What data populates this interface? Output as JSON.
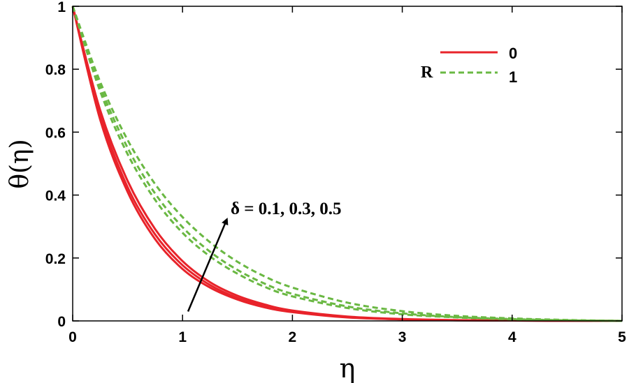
{
  "chart_data": {
    "type": "line",
    "xlabel": "η",
    "ylabel": "θ(η)",
    "xlim": [
      0,
      5
    ],
    "ylim": [
      0,
      1
    ],
    "xticks": [
      "0",
      "1",
      "2",
      "3",
      "4",
      "5"
    ],
    "yticks": [
      "0",
      "0.2",
      "0.4",
      "0.6",
      "0.8",
      "1"
    ],
    "grid": false,
    "legend": {
      "placement": "top-right",
      "title": "R",
      "entries": [
        {
          "label": "0",
          "color": "#e8232a",
          "style": "solid"
        },
        {
          "label": "1",
          "color": "#6ab843",
          "style": "dashed"
        }
      ]
    },
    "annotation": {
      "text": "δ = 0.1, 0.3, 0.5",
      "arrow_from": [
        1.05,
        0.03
      ],
      "arrow_to": [
        1.4,
        0.32
      ]
    },
    "x": [
      0,
      0.25,
      0.5,
      0.75,
      1,
      1.25,
      1.5,
      1.75,
      2,
      2.5,
      3,
      3.5,
      4,
      4.5,
      5
    ],
    "series": [
      {
        "group": "0",
        "delta": 0.1,
        "color": "#e8232a",
        "style": "solid",
        "values": [
          1,
          0.64,
          0.41,
          0.26,
          0.165,
          0.106,
          0.068,
          0.043,
          0.028,
          0.011,
          0.005,
          0.002,
          0.001,
          0.0005,
          0
        ]
      },
      {
        "group": "0",
        "delta": 0.3,
        "color": "#e8232a",
        "style": "solid",
        "values": [
          1,
          0.655,
          0.425,
          0.275,
          0.177,
          0.114,
          0.073,
          0.047,
          0.03,
          0.012,
          0.005,
          0.002,
          0.001,
          0.0005,
          0
        ]
      },
      {
        "group": "0",
        "delta": 0.5,
        "color": "#e8232a",
        "style": "solid",
        "values": [
          1,
          0.67,
          0.445,
          0.292,
          0.19,
          0.123,
          0.08,
          0.052,
          0.033,
          0.014,
          0.006,
          0.0025,
          0.001,
          0.0005,
          0
        ]
      },
      {
        "group": "1",
        "delta": 0.1,
        "color": "#6ab843",
        "style": "dashed",
        "values": [
          1,
          0.73,
          0.53,
          0.385,
          0.28,
          0.205,
          0.15,
          0.108,
          0.078,
          0.041,
          0.021,
          0.011,
          0.005,
          0.002,
          0
        ]
      },
      {
        "group": "1",
        "delta": 0.3,
        "color": "#6ab843",
        "style": "dashed",
        "values": [
          1,
          0.745,
          0.55,
          0.405,
          0.298,
          0.22,
          0.162,
          0.118,
          0.086,
          0.046,
          0.024,
          0.012,
          0.006,
          0.002,
          0
        ]
      },
      {
        "group": "1",
        "delta": 0.5,
        "color": "#6ab843",
        "style": "dashed",
        "values": [
          1,
          0.76,
          0.575,
          0.435,
          0.33,
          0.25,
          0.188,
          0.141,
          0.106,
          0.058,
          0.031,
          0.016,
          0.008,
          0.003,
          0
        ]
      }
    ]
  }
}
